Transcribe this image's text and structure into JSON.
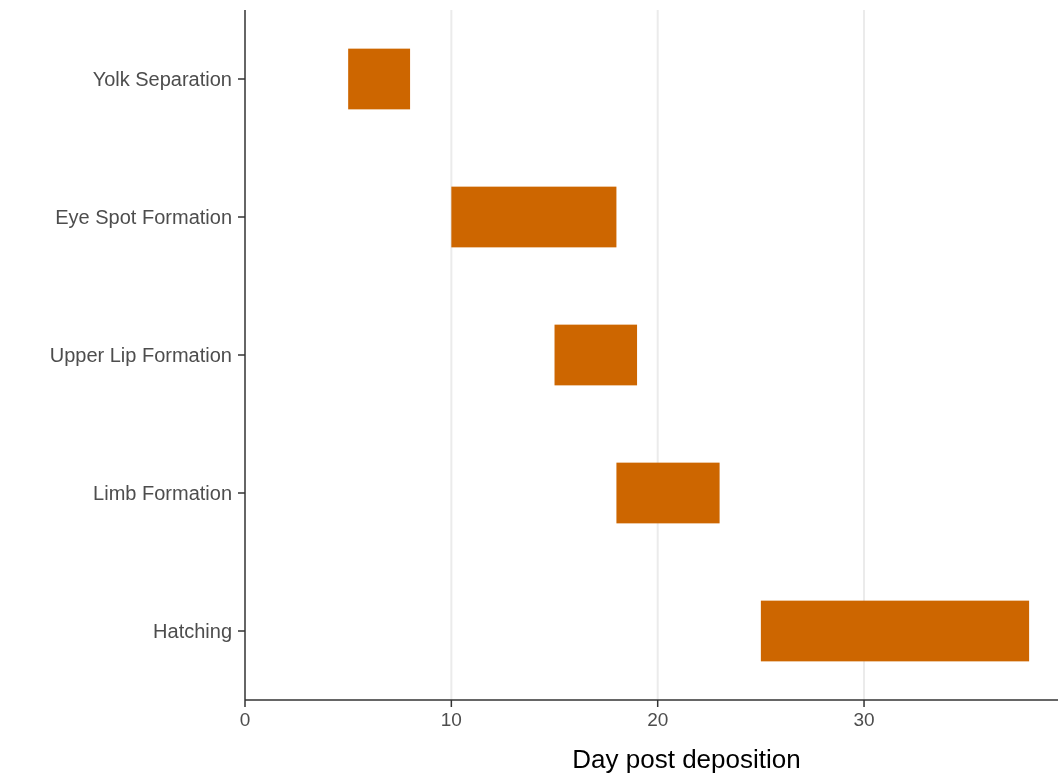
{
  "chart_data": {
    "type": "bar",
    "orientation": "horizontal",
    "xlabel": "Day post deposition",
    "categories": [
      "Yolk Separation",
      "Eye Spot Formation",
      "Upper Lip Formation",
      "Limb Formation",
      "Hatching"
    ],
    "base": [
      5,
      10,
      15,
      18,
      25
    ],
    "values": [
      3,
      8,
      4,
      5,
      13
    ],
    "color": "#cd6600",
    "xlim": [
      0,
      39.4
    ],
    "xticks": [
      0,
      10,
      20,
      30
    ],
    "grid": "x"
  }
}
